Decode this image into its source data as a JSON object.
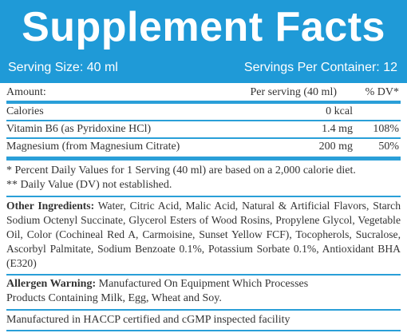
{
  "header": {
    "title": "Supplement Facts",
    "serving_size": "Serving Size: 40 ml",
    "servings_per_container": "Servings Per Container: 12"
  },
  "table": {
    "header": [
      "Amount:",
      "Per serving (40 ml)",
      "% DV*"
    ],
    "rows": [
      {
        "name": "Calories",
        "amount": "0 kcal"
      },
      {
        "name": "Vitamin B6 (as Pyridoxine HCl)",
        "amount": "1.4 mg",
        "dv": "108%"
      },
      {
        "name": "Magnesium (from Magnesium Citrate)",
        "amount": "200 mg",
        "dv": "50%"
      }
    ]
  },
  "footnotes": [
    "* Percent Daily Values for 1 Serving (40 ml) are based on a 2,000 calorie diet.",
    "** Daily Value (DV) not established."
  ],
  "other_ingredients": {
    "label": "Other Ingredients:",
    "text": "Water, Citric Acid, Malic Acid, Natural & Artificial Flavors, Starch Sodium Octenyl Succinate, Glycerol Esters of Wood Rosins, Propylene Glycol, Vegetable Oil, Color (Cochineal Red A, Carmoisine, Sunset Yellow FCF), Tocopherols, Sucralose, Ascorbyl Palmitate, Sodium Benzoate 0.1%, Potassium Sorbate 0.1%, Antioxidant BHA (E320)"
  },
  "allergen_warning": {
    "label": "Allergen Warning:",
    "lines": [
      "Manufactured On Equipment Which Processes",
      "Products Containing Milk, Egg, Wheat and Soy."
    ]
  },
  "manufacturing": "Manufactured in HACCP certified and cGMP inspected facility"
}
